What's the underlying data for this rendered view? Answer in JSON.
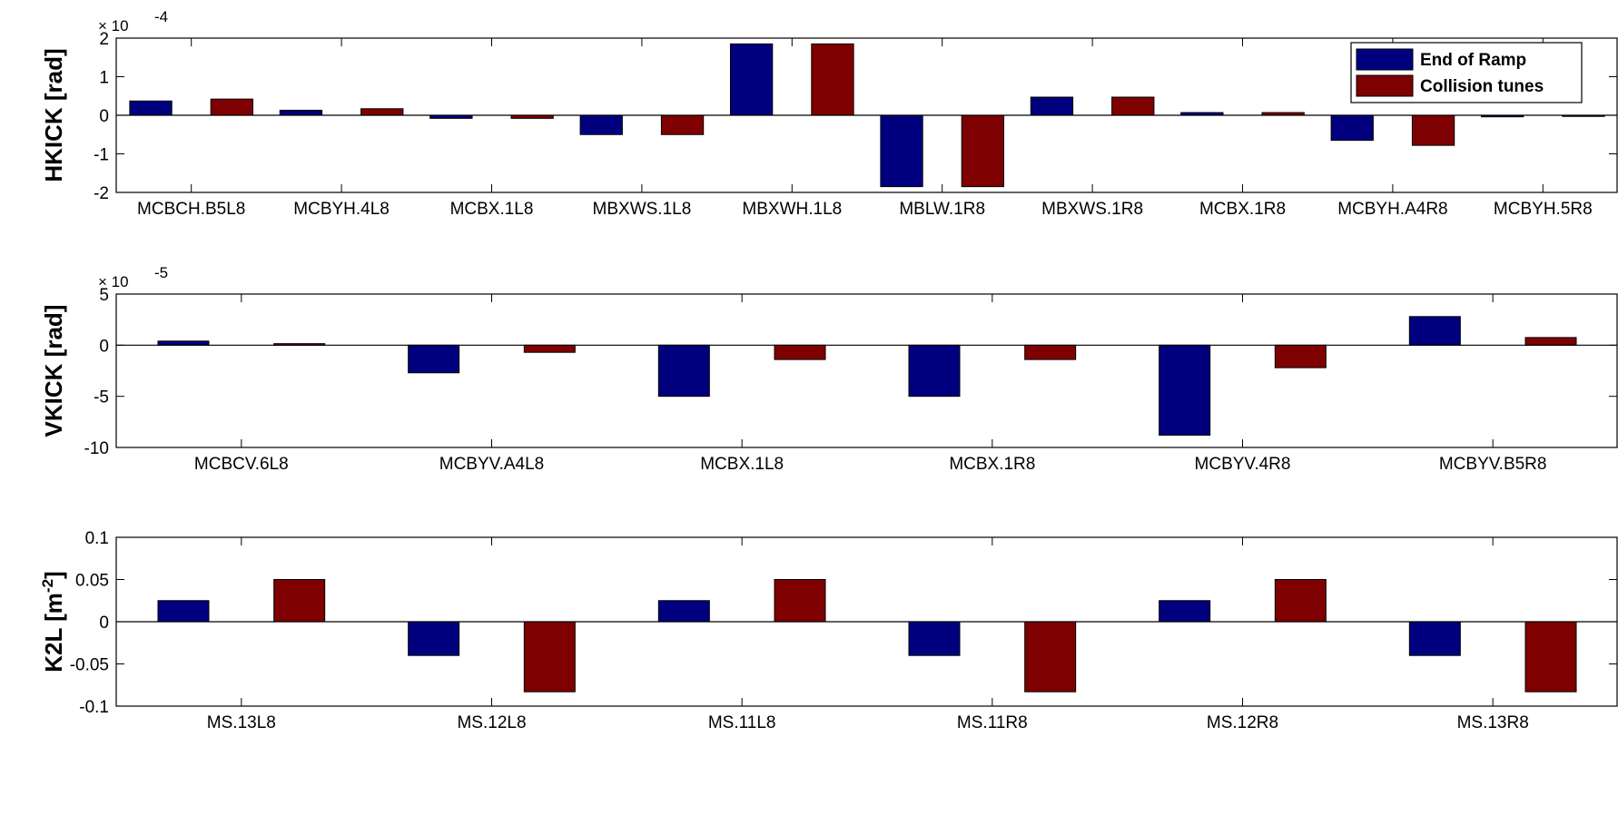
{
  "chart_data": [
    {
      "type": "bar",
      "ylabel": "HKICK [rad]",
      "y_exponent_base": "× 10",
      "y_exponent_power": "-4",
      "ylim": [
        -2,
        2
      ],
      "yticks": [
        -2,
        -1,
        0,
        1,
        2
      ],
      "categories": [
        "MCBCH.B5L8",
        "MCBYH.4L8",
        "MCBX.1L8",
        "MBXWS.1L8",
        "MBXWH.1L8",
        "MBLW.1R8",
        "MBXWS.1R8",
        "MCBX.1R8",
        "MCBYH.A4R8",
        "MCBYH.5R8"
      ],
      "series": [
        {
          "name": "End of Ramp",
          "color": "#00007f",
          "values": [
            0.37,
            0.13,
            -0.08,
            -0.5,
            1.85,
            -1.85,
            0.47,
            0.07,
            -0.65,
            -0.04
          ]
        },
        {
          "name": "Collision tunes",
          "color": "#7f0000",
          "values": [
            0.42,
            0.17,
            -0.08,
            -0.5,
            1.85,
            -1.85,
            0.47,
            0.07,
            -0.78,
            -0.03
          ]
        }
      ],
      "legend": "top-right",
      "grid": false
    },
    {
      "type": "bar",
      "ylabel": "VKICK [rad]",
      "y_exponent_base": "× 10",
      "y_exponent_power": "-5",
      "ylim": [
        -10,
        5
      ],
      "yticks": [
        -10,
        -5,
        0,
        5
      ],
      "categories": [
        "MCBCV.6L8",
        "MCBYV.A4L8",
        "MCBX.1L8",
        "MCBX.1R8",
        "MCBYV.4R8",
        "MCBYV.B5R8"
      ],
      "series": [
        {
          "name": "End of Ramp",
          "color": "#00007f",
          "values": [
            0.4,
            -2.7,
            -5.0,
            -5.0,
            -8.8,
            2.8
          ]
        },
        {
          "name": "Collision tunes",
          "color": "#7f0000",
          "values": [
            0.15,
            -0.7,
            -1.4,
            -1.4,
            -2.2,
            0.75
          ]
        }
      ],
      "grid": false
    },
    {
      "type": "bar",
      "ylabel": "K2L [m",
      "ylabel_sup": "-2",
      "ylabel_end": "]",
      "ylim": [
        -0.1,
        0.1
      ],
      "yticks": [
        "-0.1",
        "-0.05",
        "0",
        "0.05",
        "0.1"
      ],
      "categories": [
        "MS.13L8",
        "MS.12L8",
        "MS.11L8",
        "MS.11R8",
        "MS.12R8",
        "MS.13R8"
      ],
      "series": [
        {
          "name": "End of Ramp",
          "color": "#00007f",
          "values": [
            0.025,
            -0.04,
            0.025,
            -0.04,
            0.025,
            -0.04
          ]
        },
        {
          "name": "Collision tunes",
          "color": "#7f0000",
          "values": [
            0.05,
            -0.083,
            0.05,
            -0.083,
            0.05,
            -0.083
          ]
        }
      ],
      "grid": false
    }
  ]
}
